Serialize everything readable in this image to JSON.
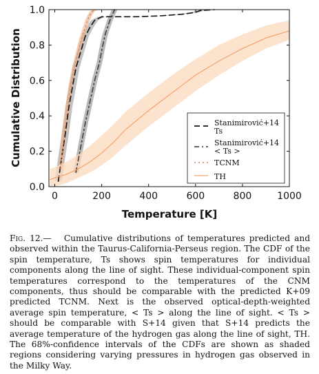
{
  "chart_data": {
    "type": "line",
    "xlabel": "Temperature [K]",
    "ylabel": "Cumulative Distribution",
    "xlim": [
      -25,
      1000
    ],
    "ylim": [
      0,
      1
    ],
    "xticks": [
      0,
      200,
      400,
      600,
      800,
      1000
    ],
    "yticks": [
      0.0,
      0.2,
      0.4,
      0.6,
      0.8,
      1.0
    ],
    "x_tick_labels": [
      "0",
      "200",
      "400",
      "600",
      "800",
      "1000"
    ],
    "y_tick_labels": [
      "0.0",
      "0.2",
      "0.4",
      "0.6",
      "0.8",
      "1.0"
    ],
    "legend_position": "lower-right",
    "legend": [
      {
        "line1": "Stanimirović+14",
        "line2": "Ts",
        "style": "dashed",
        "color": "#111111"
      },
      {
        "line1": "Stanimirović+14",
        "line2": "< Ts >",
        "style": "dashdot",
        "color": "#5a4a3c"
      },
      {
        "line1": "TCNM",
        "line2": "",
        "style": "dotted",
        "color": "#e0946a"
      },
      {
        "line1": "TH",
        "line2": "",
        "style": "solid",
        "color": "#f5a26a"
      }
    ],
    "series": [
      {
        "style": "dashed",
        "color": "#111111",
        "band": "#9a9a9a",
        "x": [
          15,
          30,
          45,
          60,
          75,
          90,
          110,
          130,
          150,
          170,
          200,
          260,
          350,
          450,
          550,
          600,
          620,
          680
        ],
        "y": [
          0.03,
          0.17,
          0.3,
          0.45,
          0.56,
          0.67,
          0.76,
          0.85,
          0.9,
          0.94,
          0.96,
          0.96,
          0.96,
          0.965,
          0.975,
          0.985,
          0.995,
          1.0
        ],
        "band_halfwidth": 15
      },
      {
        "style": "dashdot",
        "color": "#4a3e33",
        "band": "#8c8c8c",
        "x": [
          90,
          110,
          130,
          150,
          170,
          190,
          205,
          215,
          225,
          235,
          245,
          255
        ],
        "y": [
          0.08,
          0.22,
          0.36,
          0.48,
          0.6,
          0.7,
          0.8,
          0.86,
          0.9,
          0.94,
          0.97,
          1.0
        ],
        "band_halfwidth": 12
      },
      {
        "style": "dotted",
        "color": "#e0946a",
        "band": "#e8b08c",
        "x": [
          25,
          40,
          55,
          70,
          85,
          100,
          115,
          130,
          140,
          150,
          160,
          172
        ],
        "y": [
          0.1,
          0.3,
          0.45,
          0.58,
          0.68,
          0.76,
          0.84,
          0.9,
          0.94,
          0.97,
          0.99,
          1.0
        ],
        "band_halfwidth": 10
      },
      {
        "style": "solid",
        "color": "#f5a26a",
        "band": "#fbd9bd",
        "x": [
          -20,
          0,
          50,
          100,
          150,
          200,
          250,
          300,
          400,
          500,
          600,
          700,
          800,
          900,
          1000
        ],
        "y": [
          0.04,
          0.05,
          0.07,
          0.1,
          0.14,
          0.19,
          0.25,
          0.32,
          0.43,
          0.53,
          0.63,
          0.71,
          0.78,
          0.84,
          0.88
        ],
        "band_low": [
          0.0,
          0.0,
          0.02,
          0.05,
          0.08,
          0.12,
          0.17,
          0.23,
          0.34,
          0.44,
          0.54,
          0.63,
          0.71,
          0.78,
          0.83
        ],
        "band_high": [
          0.1,
          0.11,
          0.14,
          0.18,
          0.23,
          0.29,
          0.35,
          0.42,
          0.53,
          0.63,
          0.72,
          0.8,
          0.86,
          0.91,
          0.94
        ]
      }
    ]
  },
  "caption": {
    "fig_label": "Fig. 12.—",
    "text": "Cumulative distributions of temperatures predicted and observed within the Taurus-California-Perseus region. The CDF of the spin temperature, Ts shows spin temperatures for individual components along the line of sight. These individual-component spin temperatures correspond to the temperatures of the CNM components, thus should be comparable with the predicted K+09 predicted TCNM. Next is the observed optical-depth-weighted average spin temperature, < Ts > along the line of sight. < Ts > should be comparable with S+14 given that S+14 predicts the average temperature of the hydrogen gas along the line of sight, TH. The 68%-confidence intervals of the CDFs are shown as shaded regions considering varying pressures in hydrogen gas observed in the Milky Way."
  }
}
